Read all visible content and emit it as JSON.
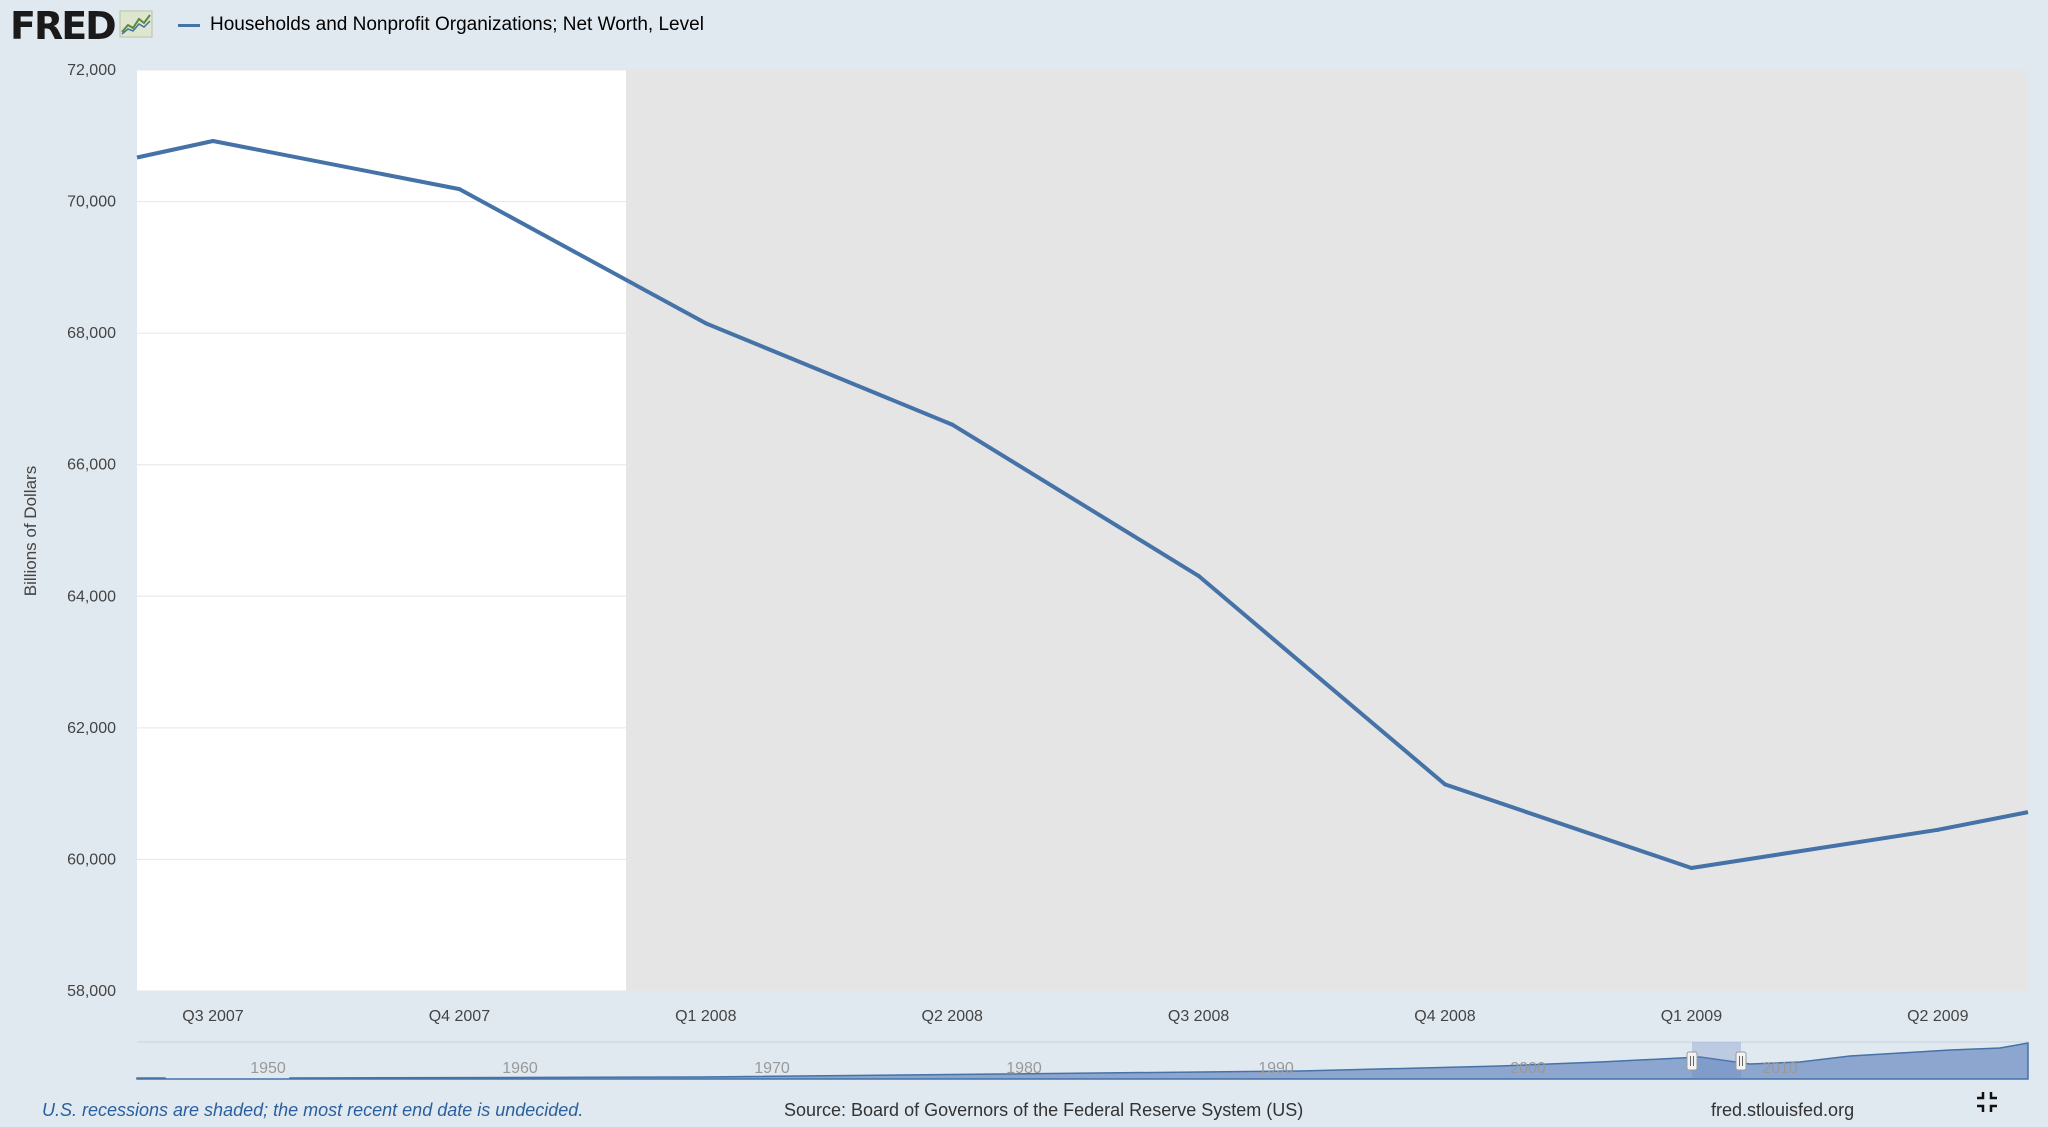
{
  "logo": {
    "text": "FRED"
  },
  "footer": {
    "recession_note": "U.S. recessions are shaded; the most recent end date is undecided.",
    "source": "Source: Board of Governors of the Federal Reserve System (US)",
    "site": "fred.stlouisfed.org"
  },
  "colors": {
    "series": "#4572a7",
    "recession": "#e5e5e5",
    "background": "#e1e9f0"
  },
  "chart_data": {
    "type": "line",
    "ylabel": "Billions of Dollars",
    "ylim": [
      58000,
      72000
    ],
    "yticks": [
      58000,
      60000,
      62000,
      64000,
      66000,
      68000,
      70000,
      72000
    ],
    "xticks": [
      "Q3 2007",
      "Q4 2007",
      "Q1 2008",
      "Q2 2008",
      "Q3 2008",
      "Q4 2008",
      "Q1 2009",
      "Q2 2009"
    ],
    "series": [
      {
        "name": "Households and Nonprofit Organizations; Net Worth, Level",
        "x": [
          "2007-07-01",
          "2007-10-01",
          "2008-01-01",
          "2008-04-01",
          "2008-07-01",
          "2008-10-01",
          "2009-01-01",
          "2009-04-01"
        ],
        "values": [
          70920,
          70190,
          68150,
          66610,
          64310,
          61140,
          59870,
          60450
        ]
      }
    ],
    "recession": {
      "start": "2007-12-01",
      "end": "2009-06-01"
    },
    "grid": true,
    "legend": "top-left",
    "navigator": {
      "labels": [
        "1950",
        "1960",
        "1970",
        "1980",
        "1990",
        "2000",
        "2010"
      ]
    }
  }
}
